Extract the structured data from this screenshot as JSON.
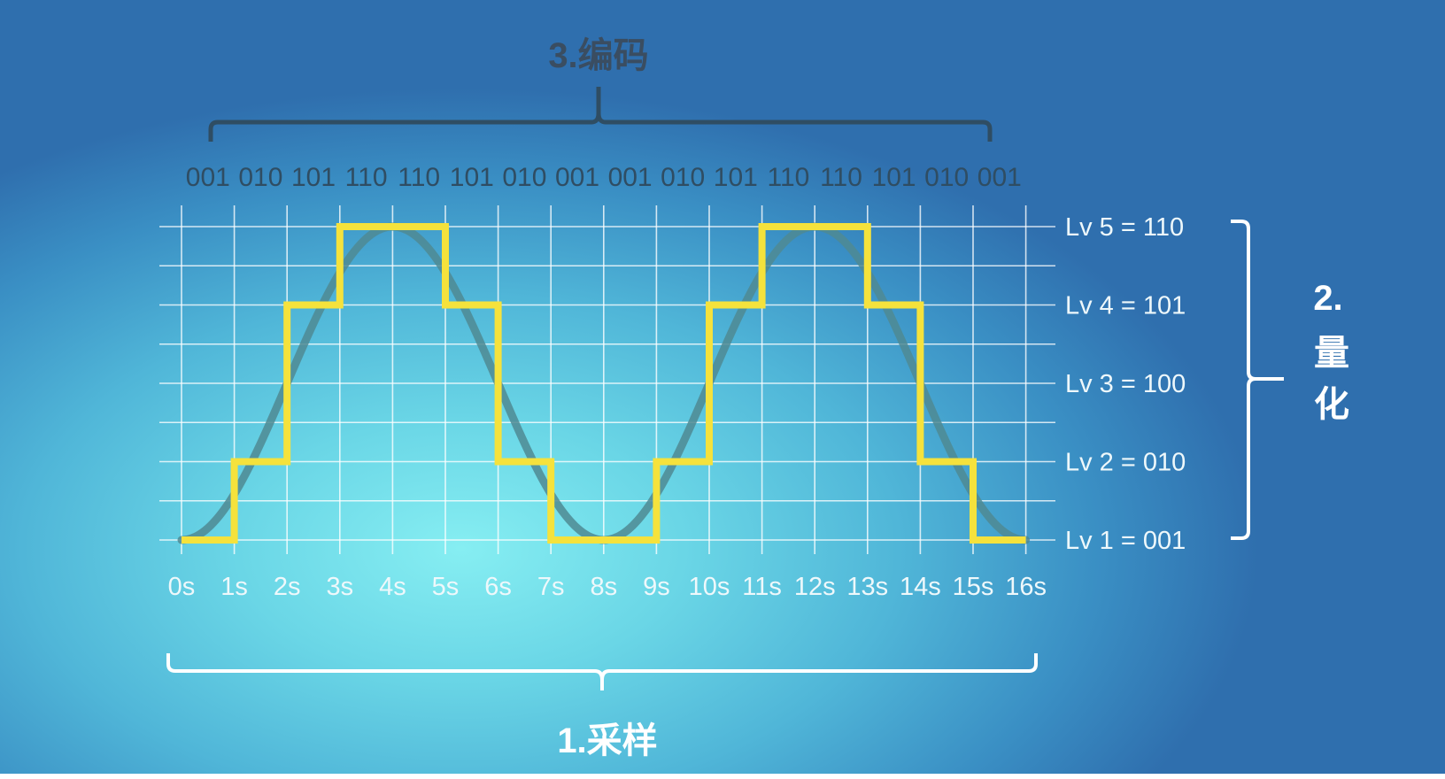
{
  "titles": {
    "encoding": "3.编码",
    "sampling": "1.采样",
    "quantization_number": "2.",
    "quantization_chars": [
      "量",
      "化"
    ]
  },
  "codes": [
    "001",
    "010",
    "101",
    "110",
    "110",
    "101",
    "010",
    "001",
    "001",
    "010",
    "101",
    "110",
    "110",
    "101",
    "010",
    "001"
  ],
  "levels": [
    {
      "label": "Lv 5 = 110",
      "level": 5
    },
    {
      "label": "Lv 4 = 101",
      "level": 4
    },
    {
      "label": "Lv 3 = 100",
      "level": 3
    },
    {
      "label": "Lv 2 = 010",
      "level": 2
    },
    {
      "label": "Lv 1 = 001",
      "level": 1
    }
  ],
  "time_ticks": [
    "0s",
    "1s",
    "2s",
    "3s",
    "4s",
    "5s",
    "6s",
    "7s",
    "8s",
    "9s",
    "10s",
    "11s",
    "12s",
    "13s",
    "14s",
    "15s",
    "16s"
  ],
  "chart_data": {
    "type": "line",
    "x": [
      0,
      1,
      2,
      3,
      4,
      5,
      6,
      7,
      8,
      9,
      10,
      11,
      12,
      13,
      14,
      15,
      16
    ],
    "ylim": [
      1,
      5
    ],
    "quantized_levels": [
      1,
      2,
      4,
      5,
      5,
      4,
      2,
      1,
      1,
      2,
      4,
      5,
      5,
      4,
      2,
      1
    ],
    "series": [
      {
        "type": "smooth",
        "color": "#4f8a93"
      },
      {
        "type": "step",
        "color": "#f5e23c"
      }
    ]
  },
  "colors": {
    "step": "#f5e23c",
    "curve": "#4f8a93",
    "grid": "#ffffff",
    "dark_text": "#2f4d63",
    "brace_dark": "#2f4d63",
    "brace_light": "#ffffff"
  }
}
